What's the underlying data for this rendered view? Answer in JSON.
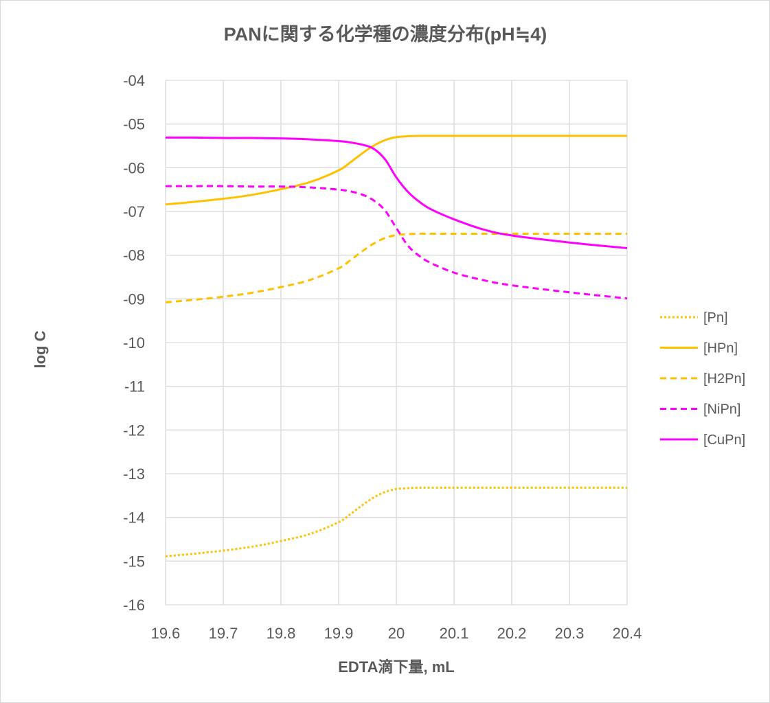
{
  "chart_data": {
    "type": "line",
    "title": "PANに関する化学種の濃度分布(pH≒4)",
    "xlabel": "EDTA滴下量, mL",
    "ylabel": "log C",
    "xlim": [
      19.6,
      20.4
    ],
    "ylim": [
      -16,
      -4
    ],
    "x_ticks": [
      "19.6",
      "19.7",
      "19.8",
      "19.9",
      "20",
      "20.1",
      "20.2",
      "20.3",
      "20.4"
    ],
    "y_ticks": [
      "-04",
      "-05",
      "-06",
      "-07",
      "-08",
      "-09",
      "-10",
      "-11",
      "-12",
      "-13",
      "-14",
      "-15",
      "-16"
    ],
    "grid": true,
    "legend_position": "right",
    "colors": {
      "text": "#595959",
      "grid": "#D9D9D9",
      "orange": "#FFC000",
      "magenta": "#FF00FF"
    },
    "x": [
      19.6,
      19.65,
      19.7,
      19.75,
      19.8,
      19.85,
      19.9,
      19.92,
      19.94,
      19.96,
      19.98,
      20.0,
      20.02,
      20.04,
      20.06,
      20.1,
      20.15,
      20.2,
      20.3,
      20.4
    ],
    "series": [
      {
        "name": "[Pn]",
        "color": "#FFC000",
        "style": "dotted",
        "values": [
          -14.89,
          -14.83,
          -14.76,
          -14.67,
          -14.54,
          -14.38,
          -14.11,
          -13.93,
          -13.73,
          -13.55,
          -13.42,
          -13.35,
          -13.33,
          -13.32,
          -13.32,
          -13.32,
          -13.32,
          -13.32,
          -13.32,
          -13.32
        ]
      },
      {
        "name": "[HPn]",
        "color": "#FFC000",
        "style": "solid",
        "values": [
          -6.84,
          -6.78,
          -6.71,
          -6.62,
          -6.49,
          -6.33,
          -6.06,
          -5.88,
          -5.68,
          -5.5,
          -5.37,
          -5.3,
          -5.28,
          -5.27,
          -5.27,
          -5.27,
          -5.27,
          -5.27,
          -5.27,
          -5.27
        ]
      },
      {
        "name": "[H2Pn]",
        "color": "#FFC000",
        "style": "dashed",
        "values": [
          -9.08,
          -9.02,
          -8.95,
          -8.86,
          -8.73,
          -8.57,
          -8.3,
          -8.12,
          -7.92,
          -7.74,
          -7.61,
          -7.54,
          -7.52,
          -7.51,
          -7.51,
          -7.51,
          -7.51,
          -7.51,
          -7.51,
          -7.51
        ]
      },
      {
        "name": "[NiPn]",
        "color": "#FF00FF",
        "style": "dashed",
        "values": [
          -6.42,
          -6.42,
          -6.42,
          -6.43,
          -6.43,
          -6.45,
          -6.5,
          -6.54,
          -6.61,
          -6.74,
          -6.97,
          -7.38,
          -7.78,
          -8.02,
          -8.18,
          -8.4,
          -8.57,
          -8.69,
          -8.85,
          -8.99
        ]
      },
      {
        "name": "[CuPn]",
        "color": "#FF00FF",
        "style": "solid",
        "values": [
          -5.31,
          -5.31,
          -5.32,
          -5.32,
          -5.33,
          -5.35,
          -5.39,
          -5.42,
          -5.47,
          -5.56,
          -5.8,
          -6.22,
          -6.55,
          -6.78,
          -6.95,
          -7.18,
          -7.41,
          -7.55,
          -7.71,
          -7.84
        ]
      }
    ]
  }
}
